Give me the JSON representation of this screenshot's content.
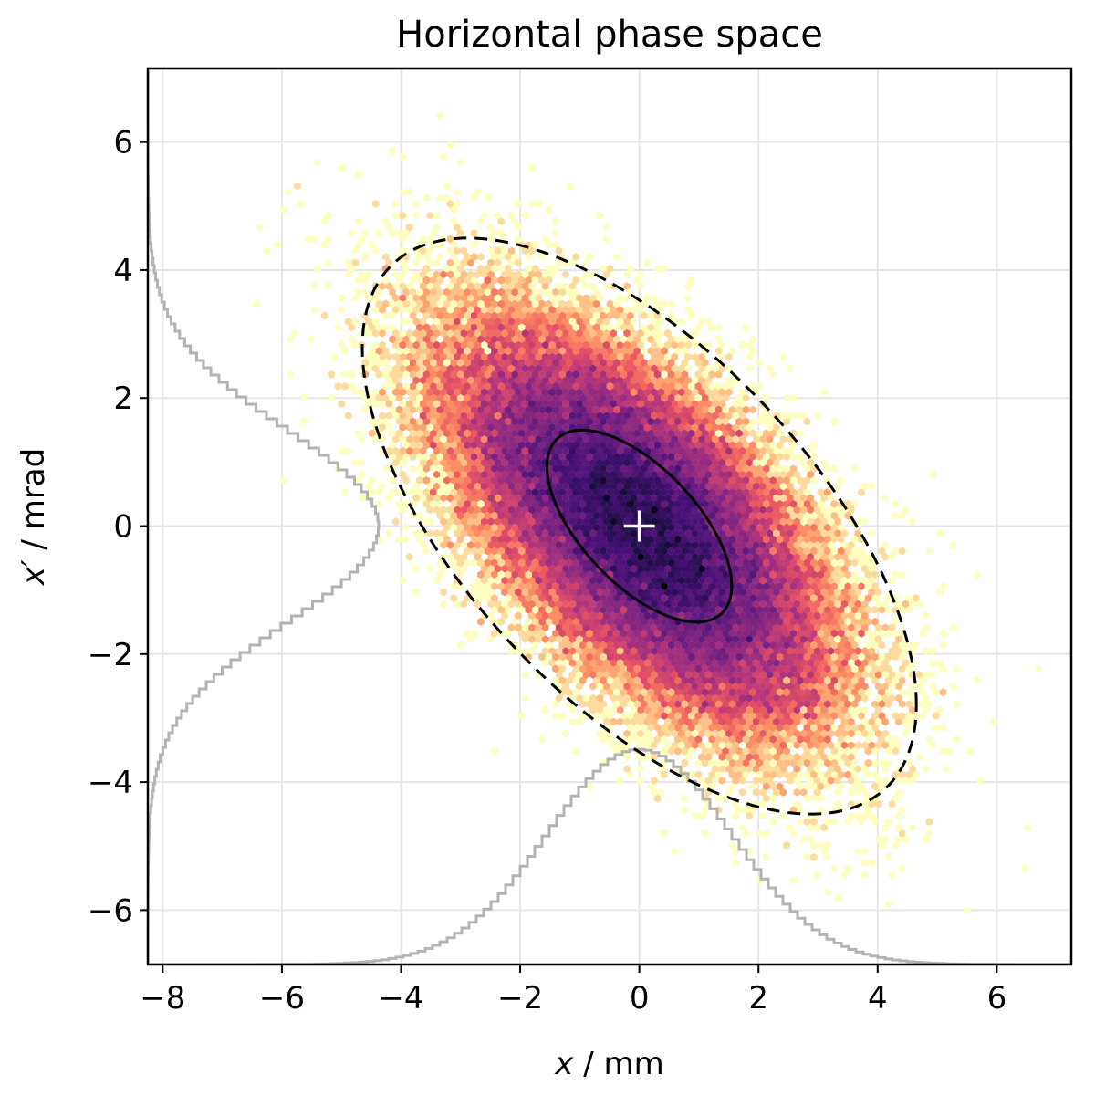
{
  "chart_data": {
    "type": "heatmap",
    "subtype": "hexbin-density-with-marginal-histograms",
    "title": "Horizontal phase space",
    "xlabel_var": "x",
    "xlabel_unit": " / mm",
    "ylabel_var": "x′",
    "ylabel_unit": " / mrad",
    "xlim": [
      -8.25,
      7.25
    ],
    "ylim": [
      -6.85,
      7.15
    ],
    "x_ticks": [
      -8,
      -6,
      -4,
      -2,
      0,
      2,
      4,
      6
    ],
    "y_ticks": [
      -6,
      -4,
      -2,
      0,
      2,
      4,
      6
    ],
    "x_tick_labels": [
      "−8",
      "−6",
      "−4",
      "−2",
      "0",
      "2",
      "4",
      "6"
    ],
    "y_tick_labels": [
      "−6",
      "−4",
      "−2",
      "0",
      "2",
      "4",
      "6"
    ],
    "grid": true,
    "colormap": "magma_r",
    "colors": {
      "grid": "#e6e6e6",
      "histogram": "#b3b3b3",
      "ellipse": "#000000",
      "centroid_marker": "#ffffff",
      "density_low": "#fcfdbf",
      "density_mid": "#fc8961",
      "density_high": "#b73779",
      "density_peak": "#000004"
    },
    "distribution": {
      "centroid": [
        0,
        0
      ],
      "sigma_x_mm": 1.55,
      "sigma_xp_mrad": 1.5,
      "correlation": -0.62,
      "sample_count": 60000
    },
    "ellipses": [
      {
        "name": "1-sigma",
        "style": "solid",
        "scale_sigma": 1
      },
      {
        "name": "3-sigma",
        "style": "dashed",
        "scale_sigma": 3
      }
    ],
    "centroid_marker": {
      "x": 0,
      "y": 0,
      "symbol": "plus"
    },
    "marginal_histograms": [
      {
        "axis": "x",
        "position": "bottom",
        "peak_value_frac": 0.24
      },
      {
        "axis": "xp",
        "position": "left",
        "peak_value_frac": 0.25
      }
    ]
  }
}
